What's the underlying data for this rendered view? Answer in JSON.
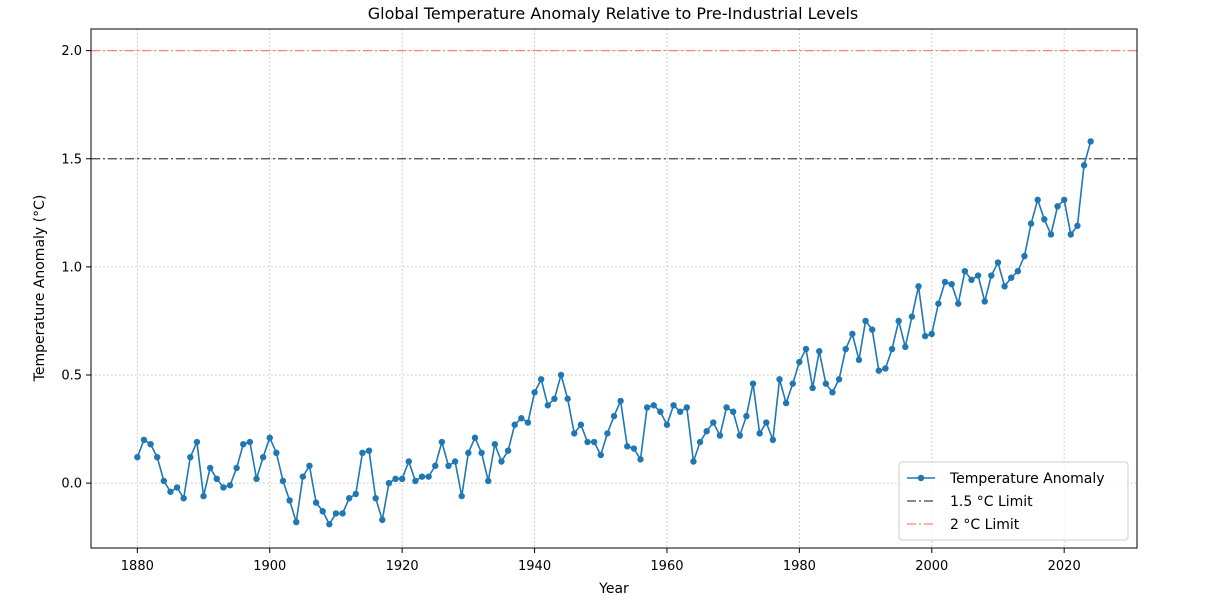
{
  "chart_data": {
    "type": "line",
    "title": "Global Temperature Anomaly Relative to Pre-Industrial Levels",
    "xlabel": "Year",
    "ylabel": "Temperature Anomaly (°C)",
    "xlim": [
      1873,
      2031
    ],
    "ylim": [
      -0.3,
      2.1
    ],
    "xticks": [
      "1880",
      "1900",
      "1920",
      "1940",
      "1960",
      "1980",
      "2000",
      "2020"
    ],
    "yticks": [
      "0.0",
      "0.5",
      "1.0",
      "1.5",
      "2.0"
    ],
    "grid": true,
    "legend_position": "lower-right",
    "series": [
      {
        "name": "Temperature Anomaly",
        "color": "#1f77b4",
        "marker": "circle",
        "x": [
          1880,
          1881,
          1882,
          1883,
          1884,
          1885,
          1886,
          1887,
          1888,
          1889,
          1890,
          1891,
          1892,
          1893,
          1894,
          1895,
          1896,
          1897,
          1898,
          1899,
          1900,
          1901,
          1902,
          1903,
          1904,
          1905,
          1906,
          1907,
          1908,
          1909,
          1910,
          1911,
          1912,
          1913,
          1914,
          1915,
          1916,
          1917,
          1918,
          1919,
          1920,
          1921,
          1922,
          1923,
          1924,
          1925,
          1926,
          1927,
          1928,
          1929,
          1930,
          1931,
          1932,
          1933,
          1934,
          1935,
          1936,
          1937,
          1938,
          1939,
          1940,
          1941,
          1942,
          1943,
          1944,
          1945,
          1946,
          1947,
          1948,
          1949,
          1950,
          1951,
          1952,
          1953,
          1954,
          1955,
          1956,
          1957,
          1958,
          1959,
          1960,
          1961,
          1962,
          1963,
          1964,
          1965,
          1966,
          1967,
          1968,
          1969,
          1970,
          1971,
          1972,
          1973,
          1974,
          1975,
          1976,
          1977,
          1978,
          1979,
          1980,
          1981,
          1982,
          1983,
          1984,
          1985,
          1986,
          1987,
          1988,
          1989,
          1990,
          1991,
          1992,
          1993,
          1994,
          1995,
          1996,
          1997,
          1998,
          1999,
          2000,
          2001,
          2002,
          2003,
          2004,
          2005,
          2006,
          2007,
          2008,
          2009,
          2010,
          2011,
          2012,
          2013,
          2014,
          2015,
          2016,
          2017,
          2018,
          2019,
          2020,
          2021,
          2022,
          2023,
          2024
        ],
        "values": [
          0.12,
          0.2,
          0.18,
          0.12,
          0.01,
          -0.04,
          -0.02,
          -0.07,
          0.12,
          0.19,
          -0.06,
          0.07,
          0.02,
          -0.02,
          -0.01,
          0.07,
          0.18,
          0.19,
          0.02,
          0.12,
          0.21,
          0.14,
          0.01,
          -0.08,
          -0.18,
          0.03,
          0.08,
          -0.09,
          -0.13,
          -0.19,
          -0.14,
          -0.14,
          -0.07,
          -0.05,
          0.14,
          0.15,
          -0.07,
          -0.17,
          0.0,
          0.02,
          0.02,
          0.1,
          0.01,
          0.03,
          0.03,
          0.08,
          0.19,
          0.08,
          0.1,
          -0.06,
          0.14,
          0.21,
          0.14,
          0.01,
          0.18,
          0.1,
          0.15,
          0.27,
          0.3,
          0.28,
          0.42,
          0.48,
          0.36,
          0.39,
          0.5,
          0.39,
          0.23,
          0.27,
          0.19,
          0.19,
          0.13,
          0.23,
          0.31,
          0.38,
          0.17,
          0.16,
          0.11,
          0.35,
          0.36,
          0.33,
          0.27,
          0.36,
          0.33,
          0.35,
          0.1,
          0.19,
          0.24,
          0.28,
          0.22,
          0.35,
          0.33,
          0.22,
          0.31,
          0.46,
          0.23,
          0.28,
          0.2,
          0.48,
          0.37,
          0.46,
          0.56,
          0.62,
          0.44,
          0.61,
          0.46,
          0.42,
          0.48,
          0.62,
          0.69,
          0.57,
          0.75,
          0.71,
          0.52,
          0.53,
          0.62,
          0.75,
          0.63,
          0.77,
          0.91,
          0.68,
          0.69,
          0.83,
          0.93,
          0.92,
          0.83,
          0.98,
          0.94,
          0.96,
          0.84,
          0.96,
          1.02,
          0.91,
          0.95,
          0.98,
          1.05,
          1.2,
          1.31,
          1.22,
          1.15,
          1.28,
          1.31,
          1.15,
          1.19,
          1.47,
          1.58
        ]
      },
      {
        "name": "1.5 °C Limit",
        "color": "#444444",
        "style": "dash-dot",
        "y": 1.5
      },
      {
        "name": "2 °C Limit",
        "color": "#ff7f7f",
        "style": "dash-dot",
        "y": 2.0
      }
    ]
  }
}
